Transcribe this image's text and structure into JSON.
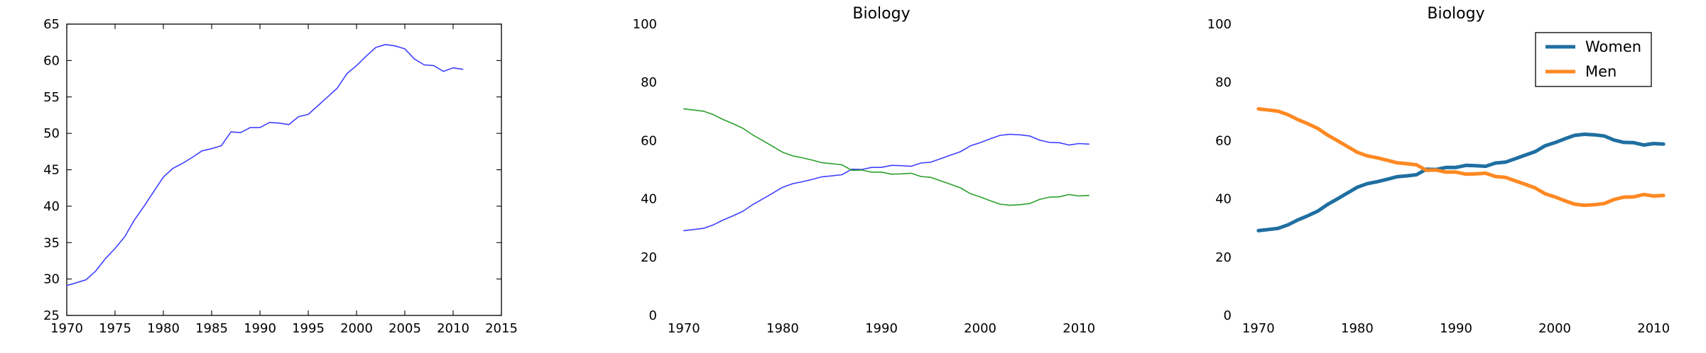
{
  "chart_data": [
    {
      "type": "line",
      "title": "",
      "xlabel": "",
      "ylabel": "",
      "xlim": [
        1970,
        2015
      ],
      "ylim": [
        25,
        65
      ],
      "xticks": [
        "1970",
        "1975",
        "1980",
        "1985",
        "1990",
        "1995",
        "2000",
        "2005",
        "2010",
        "2015"
      ],
      "yticks": [
        "25",
        "30",
        "35",
        "40",
        "45",
        "50",
        "55",
        "60",
        "65"
      ],
      "x": [
        1970,
        1971,
        1972,
        1973,
        1974,
        1975,
        1976,
        1977,
        1978,
        1979,
        1980,
        1981,
        1982,
        1983,
        1984,
        1985,
        1986,
        1987,
        1988,
        1989,
        1990,
        1991,
        1992,
        1993,
        1994,
        1995,
        1996,
        1997,
        1998,
        1999,
        2000,
        2001,
        2002,
        2003,
        2004,
        2005,
        2006,
        2007,
        2008,
        2009,
        2010,
        2011
      ],
      "series": [
        {
          "name": "",
          "color": "#4040ff",
          "values": [
            29.1,
            29.5,
            29.9,
            31.1,
            32.8,
            34.2,
            35.8,
            38.1,
            40.0,
            42.0,
            44.0,
            45.2,
            45.9,
            46.7,
            47.6,
            47.9,
            48.3,
            50.2,
            50.1,
            50.8,
            50.8,
            51.5,
            51.4,
            51.2,
            52.3,
            52.6,
            53.8,
            55.0,
            56.2,
            58.2,
            59.3,
            60.6,
            61.8,
            62.2,
            62.0,
            61.6,
            60.2,
            59.4,
            59.3,
            58.5,
            59.0,
            58.8
          ]
        }
      ]
    },
    {
      "type": "line",
      "title": "Biology",
      "xlabel": "",
      "ylabel": "",
      "xlim": [
        1968,
        2012
      ],
      "ylim": [
        0,
        100
      ],
      "xticks": [
        "1970",
        "1980",
        "1990",
        "2000",
        "2010"
      ],
      "yticks": [
        "0",
        "20",
        "40",
        "60",
        "80",
        "100"
      ],
      "x": [
        1970,
        1971,
        1972,
        1973,
        1974,
        1975,
        1976,
        1977,
        1978,
        1979,
        1980,
        1981,
        1982,
        1983,
        1984,
        1985,
        1986,
        1987,
        1988,
        1989,
        1990,
        1991,
        1992,
        1993,
        1994,
        1995,
        1996,
        1997,
        1998,
        1999,
        2000,
        2001,
        2002,
        2003,
        2004,
        2005,
        2006,
        2007,
        2008,
        2009,
        2010,
        2011
      ],
      "series": [
        {
          "name": "",
          "color": "#4040ff",
          "values": [
            29.1,
            29.5,
            29.9,
            31.1,
            32.8,
            34.2,
            35.8,
            38.1,
            40.0,
            42.0,
            44.0,
            45.2,
            45.9,
            46.7,
            47.6,
            47.9,
            48.3,
            50.2,
            50.1,
            50.8,
            50.8,
            51.5,
            51.4,
            51.2,
            52.3,
            52.6,
            53.8,
            55.0,
            56.2,
            58.2,
            59.3,
            60.6,
            61.8,
            62.2,
            62.0,
            61.6,
            60.2,
            59.4,
            59.3,
            58.5,
            59.0,
            58.8
          ]
        },
        {
          "name": "",
          "color": "#2ca02c",
          "values": [
            70.9,
            70.5,
            70.1,
            68.9,
            67.2,
            65.8,
            64.2,
            61.9,
            60.0,
            58.0,
            56.0,
            54.8,
            54.1,
            53.3,
            52.4,
            52.1,
            51.7,
            49.8,
            49.9,
            49.2,
            49.2,
            48.5,
            48.6,
            48.8,
            47.7,
            47.4,
            46.2,
            45.0,
            43.8,
            41.8,
            40.7,
            39.4,
            38.2,
            37.8,
            38.0,
            38.4,
            39.8,
            40.6,
            40.7,
            41.5,
            41.0,
            41.2
          ]
        }
      ]
    },
    {
      "type": "line",
      "title": "Biology",
      "xlabel": "",
      "ylabel": "",
      "xlim": [
        1968,
        2012
      ],
      "ylim": [
        0,
        100
      ],
      "xticks": [
        "1970",
        "1980",
        "1990",
        "2000",
        "2010"
      ],
      "yticks": [
        "0",
        "20",
        "40",
        "60",
        "80",
        "100"
      ],
      "legend": "top-right",
      "x": [
        1970,
        1971,
        1972,
        1973,
        1974,
        1975,
        1976,
        1977,
        1978,
        1979,
        1980,
        1981,
        1982,
        1983,
        1984,
        1985,
        1986,
        1987,
        1988,
        1989,
        1990,
        1991,
        1992,
        1993,
        1994,
        1995,
        1996,
        1997,
        1998,
        1999,
        2000,
        2001,
        2002,
        2003,
        2004,
        2005,
        2006,
        2007,
        2008,
        2009,
        2010,
        2011
      ],
      "series": [
        {
          "name": "Women",
          "color": "#1f6fa0",
          "values": [
            29.1,
            29.5,
            29.9,
            31.1,
            32.8,
            34.2,
            35.8,
            38.1,
            40.0,
            42.0,
            44.0,
            45.2,
            45.9,
            46.7,
            47.6,
            47.9,
            48.3,
            50.2,
            50.1,
            50.8,
            50.8,
            51.5,
            51.4,
            51.2,
            52.3,
            52.6,
            53.8,
            55.0,
            56.2,
            58.2,
            59.3,
            60.6,
            61.8,
            62.2,
            62.0,
            61.6,
            60.2,
            59.4,
            59.3,
            58.5,
            59.0,
            58.8
          ]
        },
        {
          "name": "Men",
          "color": "#ff8822",
          "values": [
            70.9,
            70.5,
            70.1,
            68.9,
            67.2,
            65.8,
            64.2,
            61.9,
            60.0,
            58.0,
            56.0,
            54.8,
            54.1,
            53.3,
            52.4,
            52.1,
            51.7,
            49.8,
            49.9,
            49.2,
            49.2,
            48.5,
            48.6,
            48.8,
            47.7,
            47.4,
            46.2,
            45.0,
            43.8,
            41.8,
            40.7,
            39.4,
            38.2,
            37.8,
            38.0,
            38.4,
            39.8,
            40.6,
            40.7,
            41.5,
            41.0,
            41.2
          ]
        }
      ]
    }
  ]
}
